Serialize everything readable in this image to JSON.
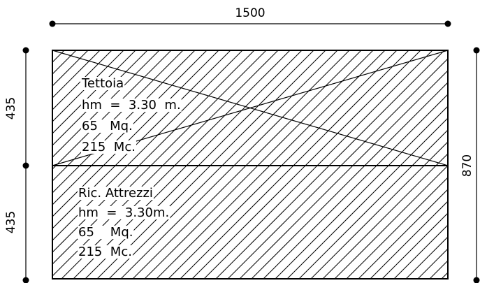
{
  "dimensions": {
    "top_width": "1500",
    "left_upper": "435",
    "left_lower": "435",
    "right_total": "870"
  },
  "upper_area": {
    "name": "Tettoia",
    "height": "hm  =  3.30  m.",
    "surface": "65   Mq.",
    "volume": "215  Mc."
  },
  "lower_area": {
    "name": "Ric. Attrezzi",
    "height": "hm  =  3.30m.",
    "surface": "65    Mq.",
    "volume": "215  Mc."
  },
  "hatch": {
    "pattern": "diagonal",
    "color": "#000000"
  }
}
